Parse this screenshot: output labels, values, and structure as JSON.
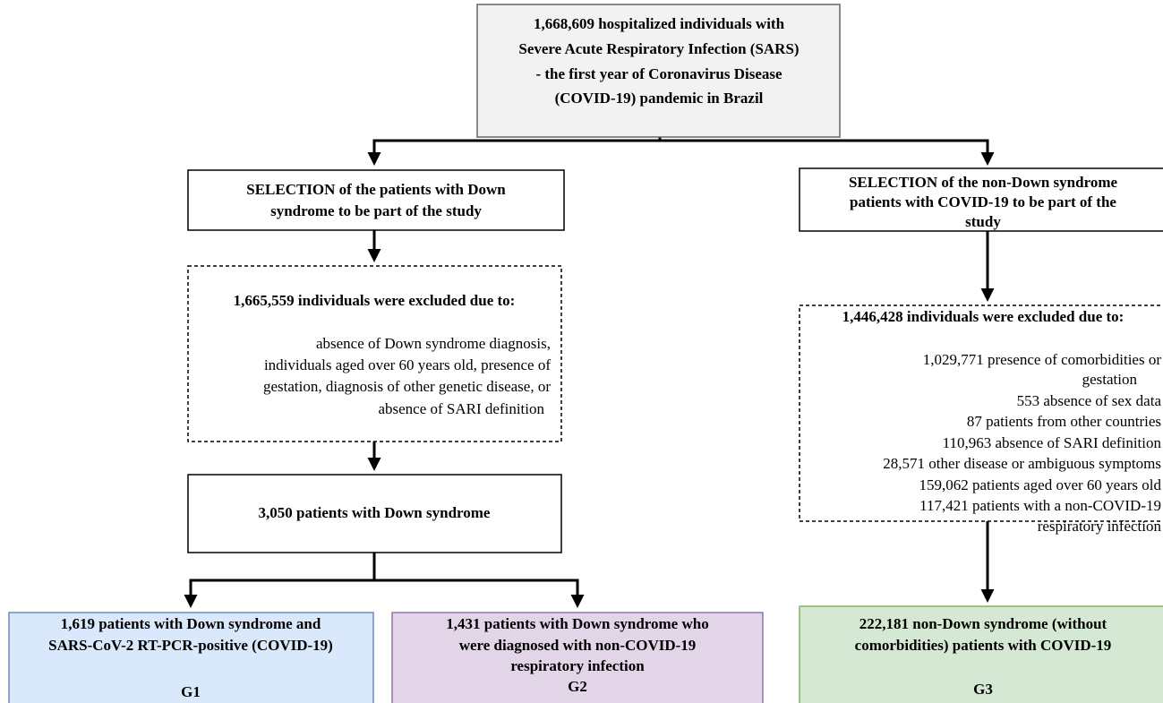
{
  "top_box": {
    "lines": [
      "1,668,609 hospitalized individuals with",
      "Severe Acute Respiratory Infection (SARS)",
      "- the first year of Coronavirus Disease",
      "(COVID-19) pandemic in Brazil"
    ]
  },
  "left_selection": {
    "lines": [
      "SELECTION of the patients with Down",
      "syndrome to be part of the study"
    ]
  },
  "left_exclusion": {
    "heading": "1,665,559 individuals were excluded due to:",
    "lines": [
      "absence of Down syndrome diagnosis,",
      "individuals aged over 60 years old, presence of",
      "gestation, diagnosis of other genetic disease, or",
      "absence of SARI definition"
    ]
  },
  "down_syndrome": {
    "lines": [
      "3,050 patients with Down syndrome"
    ]
  },
  "g1": {
    "lines": [
      "1,619 patients with Down syndrome and",
      "SARS-CoV-2 RT-PCR-positive (COVID-19)"
    ],
    "label": "G1"
  },
  "g2": {
    "lines": [
      "1,431 patients with Down syndrome who",
      "were diagnosed with non-COVID-19",
      "respiratory infection"
    ],
    "label": "G2"
  },
  "right_selection": {
    "lines": [
      "SELECTION of the non-Down syndrome",
      "patients with COVID-19 to be part of the",
      "study"
    ]
  },
  "right_exclusion": {
    "heading": "1,446,428 individuals were excluded due to:",
    "lines": [
      "1,029,771 presence of comorbidities or",
      "gestation",
      "553 absence of sex data",
      "87 patients from other countries",
      "110,963 absence of SARI definition",
      "28,571 other disease or ambiguous symptoms",
      "159,062 patients aged over 60 years old",
      "117,421 patients with a non-COVID-19",
      "respiratory infection"
    ]
  },
  "g3": {
    "lines": [
      "222,181 non-Down syndrome (without",
      "comorbidities) patients with COVID-19"
    ],
    "label": "G3"
  }
}
